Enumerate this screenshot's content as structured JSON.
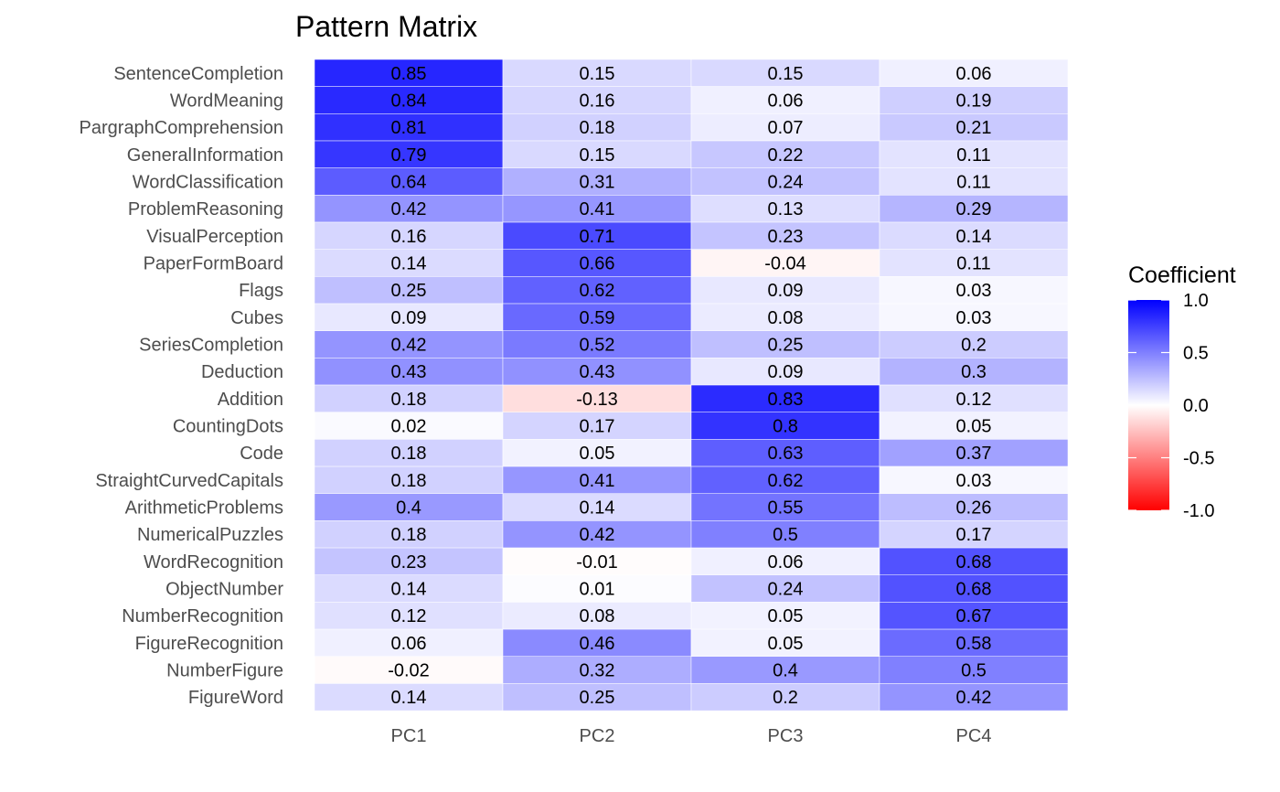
{
  "chart_data": {
    "type": "heatmap",
    "title": "Pattern Matrix",
    "x_categories": [
      "PC1",
      "PC2",
      "PC3",
      "PC4"
    ],
    "y_categories": [
      "SentenceCompletion",
      "WordMeaning",
      "PargraphComprehension",
      "GeneralInformation",
      "WordClassification",
      "ProblemReasoning",
      "VisualPerception",
      "PaperFormBoard",
      "Flags",
      "Cubes",
      "SeriesCompletion",
      "Deduction",
      "Addition",
      "CountingDots",
      "Code",
      "StraightCurvedCapitals",
      "ArithmeticProblems",
      "NumericalPuzzles",
      "WordRecognition",
      "ObjectNumber",
      "NumberRecognition",
      "FigureRecognition",
      "NumberFigure",
      "FigureWord"
    ],
    "values": [
      [
        0.85,
        0.15,
        0.15,
        0.06
      ],
      [
        0.84,
        0.16,
        0.06,
        0.19
      ],
      [
        0.81,
        0.18,
        0.07,
        0.21
      ],
      [
        0.79,
        0.15,
        0.22,
        0.11
      ],
      [
        0.64,
        0.31,
        0.24,
        0.11
      ],
      [
        0.42,
        0.41,
        0.13,
        0.29
      ],
      [
        0.16,
        0.71,
        0.23,
        0.14
      ],
      [
        0.14,
        0.66,
        -0.04,
        0.11
      ],
      [
        0.25,
        0.62,
        0.09,
        0.03
      ],
      [
        0.09,
        0.59,
        0.08,
        0.03
      ],
      [
        0.42,
        0.52,
        0.25,
        0.2
      ],
      [
        0.43,
        0.43,
        0.09,
        0.3
      ],
      [
        0.18,
        -0.13,
        0.83,
        0.12
      ],
      [
        0.02,
        0.17,
        0.8,
        0.05
      ],
      [
        0.18,
        0.05,
        0.63,
        0.37
      ],
      [
        0.18,
        0.41,
        0.62,
        0.03
      ],
      [
        0.4,
        0.14,
        0.55,
        0.26
      ],
      [
        0.18,
        0.42,
        0.5,
        0.17
      ],
      [
        0.23,
        -0.01,
        0.06,
        0.68
      ],
      [
        0.14,
        0.01,
        0.24,
        0.68
      ],
      [
        0.12,
        0.08,
        0.05,
        0.67
      ],
      [
        0.06,
        0.46,
        0.05,
        0.58
      ],
      [
        -0.02,
        0.32,
        0.4,
        0.5
      ],
      [
        0.14,
        0.25,
        0.2,
        0.42
      ]
    ],
    "legend": {
      "title": "Coefficient",
      "ticks": [
        "1.0",
        "0.5",
        "0.0",
        "-0.5",
        "-1.0"
      ],
      "tick_values": [
        1.0,
        0.5,
        0.0,
        -0.5,
        -1.0
      ],
      "limits": [
        -1,
        1
      ],
      "position": "right"
    },
    "colors": {
      "low": "#ff0000",
      "mid": "#ffffff",
      "high": "#0000ff"
    }
  }
}
